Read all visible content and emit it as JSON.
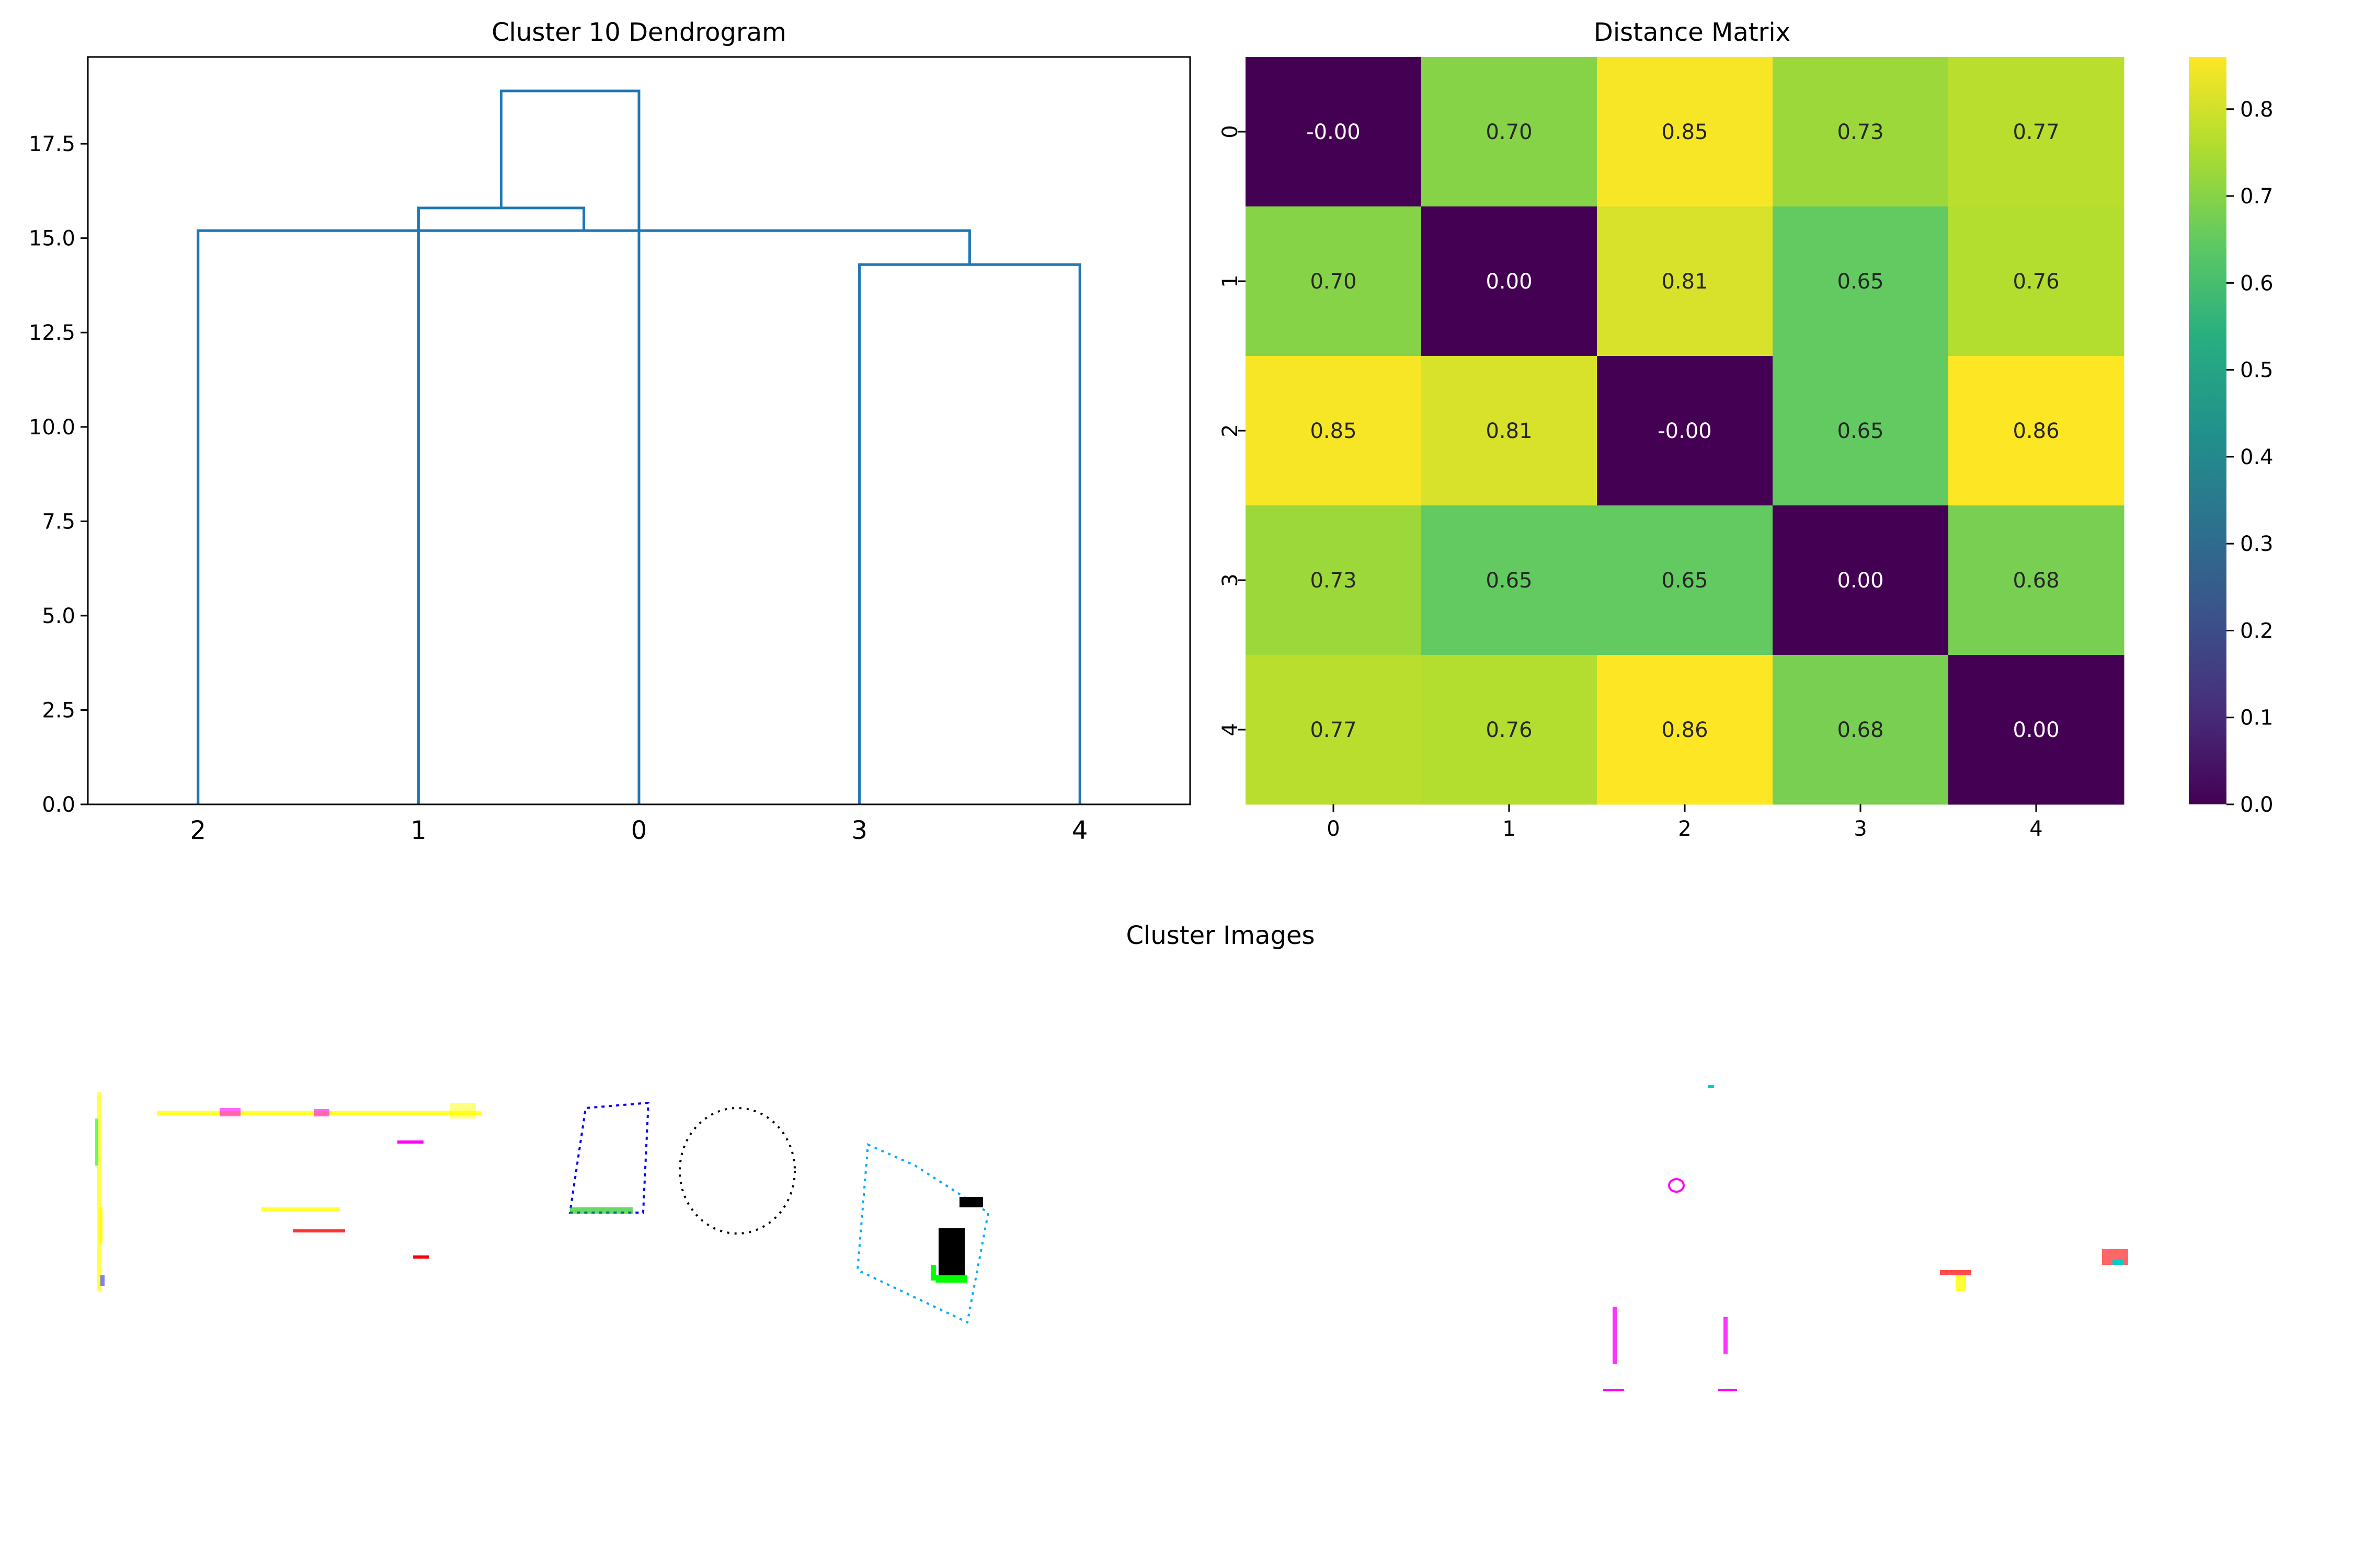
{
  "chart_data": [
    {
      "type": "dendrogram",
      "title": "Cluster 10 Dendrogram",
      "x_tick_labels": [
        "2",
        "1",
        "0",
        "3",
        "4"
      ],
      "ylim": [
        0,
        19.8
      ],
      "y_ticks": [
        0,
        2.5,
        5,
        7.5,
        10,
        12.5,
        15,
        17.5
      ],
      "y_tick_labels": [
        "0.0",
        "2.5",
        "5.0",
        "7.5",
        "10.0",
        "12.5",
        "15.0",
        "17.5"
      ],
      "line_color": "#1f77b4",
      "merges": [
        {
          "left": 3,
          "right": 4,
          "height": 14.3
        },
        {
          "left": 2,
          "right": "3+4",
          "height": 15.2
        },
        {
          "left": 1,
          "right": "0+3+4",
          "height": 15.8
        },
        {
          "left": 0,
          "right": "1+0+3+4",
          "height": 18.9
        }
      ]
    },
    {
      "type": "heatmap",
      "title": "Distance Matrix",
      "colormap": "viridis",
      "x_labels": [
        "0",
        "1",
        "2",
        "3",
        "4"
      ],
      "y_labels": [
        "0",
        "1",
        "2",
        "3",
        "4"
      ],
      "values": [
        [
          -0.0,
          0.7,
          0.85,
          0.73,
          0.77
        ],
        [
          0.7,
          0.0,
          0.81,
          0.65,
          0.76
        ],
        [
          0.85,
          0.81,
          -0.0,
          0.65,
          0.86
        ],
        [
          0.73,
          0.65,
          0.65,
          0.0,
          0.68
        ],
        [
          0.77,
          0.76,
          0.86,
          0.68,
          0.0
        ]
      ],
      "annotations": [
        [
          "-0.00",
          "0.70",
          "0.85",
          "0.73",
          "0.77"
        ],
        [
          "0.70",
          "0.00",
          "0.81",
          "0.65",
          "0.76"
        ],
        [
          "0.85",
          "0.81",
          "-0.00",
          "0.65",
          "0.86"
        ],
        [
          "0.73",
          "0.65",
          "0.65",
          "0.00",
          "0.68"
        ],
        [
          "0.77",
          "0.76",
          "0.86",
          "0.68",
          "0.00"
        ]
      ],
      "colorbar": {
        "range": [
          0.0,
          0.86
        ],
        "ticks": [
          0,
          0.1,
          0.2,
          0.3,
          0.4,
          0.5,
          0.6,
          0.7,
          0.8
        ],
        "tick_labels": [
          "0.0",
          "0.1",
          "0.2",
          "0.3",
          "0.4",
          "0.5",
          "0.6",
          "0.7",
          "0.8"
        ]
      }
    },
    {
      "type": "image",
      "title": "Cluster Images"
    }
  ]
}
